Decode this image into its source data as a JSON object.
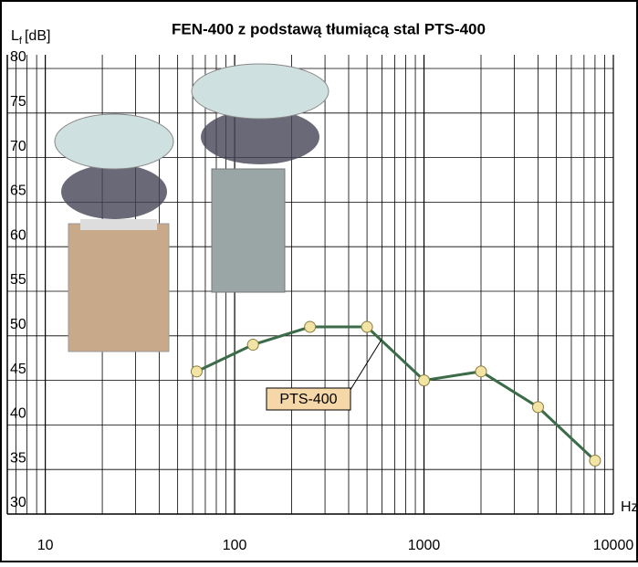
{
  "chart_data": {
    "type": "line",
    "title": "FEN-400 z podstawą tłumiącą stal PTS-400",
    "ylabel": {
      "main": "L",
      "sub": "f",
      "unit": "[dB]"
    },
    "xlabel": "Hz",
    "log_x": true,
    "grid": true,
    "xlim": [
      6.3,
      10000
    ],
    "xticks": [
      10,
      100,
      1000,
      10000
    ],
    "ylim": [
      30,
      80
    ],
    "yticks": [
      30,
      35,
      40,
      45,
      50,
      55,
      60,
      65,
      70,
      75,
      80
    ],
    "x": [
      63,
      125,
      250,
      500,
      1000,
      2000,
      4000,
      8000
    ],
    "series": [
      {
        "name": "PTS-400",
        "color": "#3b6b48",
        "values": [
          46,
          49,
          51,
          51,
          45,
          46,
          42,
          36
        ]
      }
    ],
    "annotation": "PTS-400"
  }
}
